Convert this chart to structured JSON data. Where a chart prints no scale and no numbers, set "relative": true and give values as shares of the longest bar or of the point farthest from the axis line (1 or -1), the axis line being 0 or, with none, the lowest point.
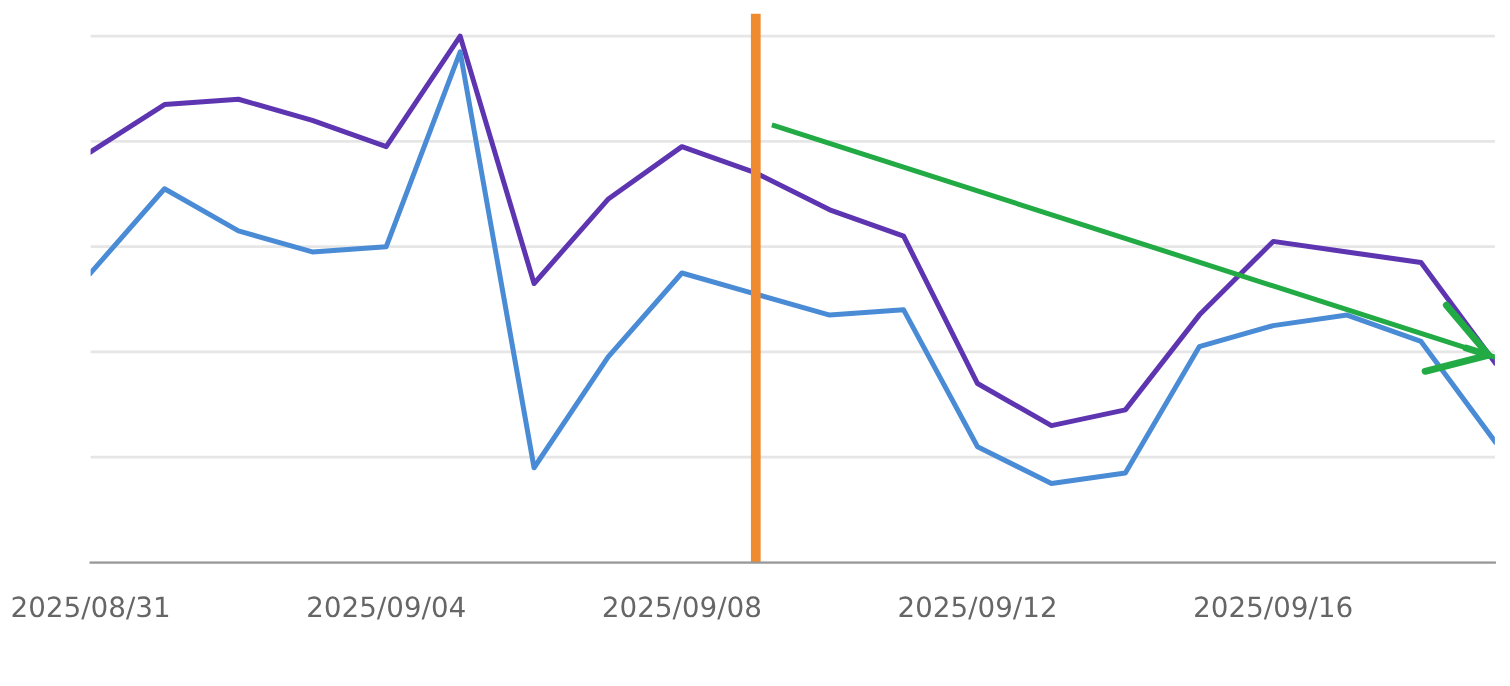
{
  "chart_data": {
    "type": "line",
    "relative": true,
    "grid": "y",
    "marker": "none",
    "line_style": "solid",
    "x": [
      "2025-08-31",
      "2025-09-01",
      "2025-09-02",
      "2025-09-03",
      "2025-09-04",
      "2025-09-05",
      "2025-09-06",
      "2025-09-07",
      "2025-09-08",
      "2025-09-09",
      "2025-09-10",
      "2025-09-11",
      "2025-09-12",
      "2025-09-13",
      "2025-09-14",
      "2025-09-15",
      "2025-09-16",
      "2025-09-17",
      "2025-09-18",
      "2025-09-19"
    ],
    "xlim": [
      "2025-08-31",
      "2025-09-19"
    ],
    "xticks": [
      {
        "value": "2025-08-31",
        "label": "2025/08/31"
      },
      {
        "value": "2025-09-04",
        "label": "2025/09/04"
      },
      {
        "value": "2025-09-08",
        "label": "2025/09/08"
      },
      {
        "value": "2025-09-12",
        "label": "2025/09/12"
      },
      {
        "value": "2025-09-16",
        "label": "2025/09/16"
      }
    ],
    "series": [
      {
        "color": "#5e35b1",
        "values": [
          0.78,
          0.87,
          0.88,
          0.84,
          0.79,
          1.0,
          0.53,
          0.69,
          0.79,
          0.74,
          0.67,
          0.62,
          0.34,
          0.26,
          0.29,
          0.47,
          0.61,
          0.59,
          0.57,
          0.38
        ]
      },
      {
        "color": "#4a8bd6",
        "values": [
          0.55,
          0.71,
          0.63,
          0.59,
          0.6,
          0.97,
          0.18,
          0.39,
          0.55,
          0.51,
          0.47,
          0.48,
          0.22,
          0.15,
          0.17,
          0.41,
          0.45,
          0.47,
          0.42,
          0.23
        ]
      },
      {
        "color": "#22aa44",
        "x": [
          "2025-09-09T06:00",
          "2025-09-19"
        ],
        "values": [
          0.83,
          0.39
        ]
      }
    ],
    "ref_lines": [
      {
        "axis": "x",
        "value": "2025-09-09",
        "color": "#f08a30",
        "line_style": "solid"
      }
    ]
  }
}
